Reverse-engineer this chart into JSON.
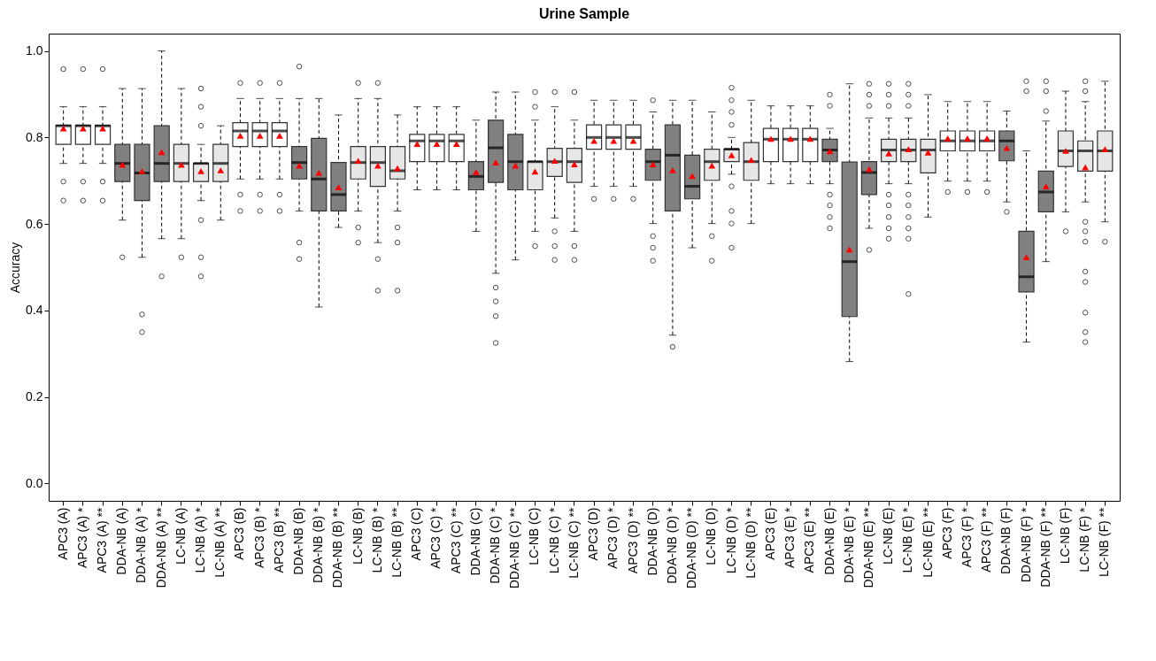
{
  "chart_data": {
    "type": "box",
    "title": "Urine Sample",
    "ylabel": "Accuracy",
    "categories": [
      "APC3 (A)",
      "APC3 (A) *",
      "APC3 (A) **",
      "DDA-NB (A)",
      "DDA-NB (A) *",
      "DDA-NB (A) **",
      "LC-NB (A)",
      "LC-NB (A) *",
      "LC-NB (A) **",
      "APC3 (B)",
      "APC3 (B) *",
      "APC3 (B) **",
      "DDA-NB (B)",
      "DDA-NB (B) *",
      "DDA-NB (B) **",
      "LC-NB (B)",
      "LC-NB (B) *",
      "LC-NB (B) **",
      "APC3 (C)",
      "APC3 (C) *",
      "APC3 (C) **",
      "DDA-NB (C)",
      "DDA-NB (C) *",
      "DDA-NB (C) **",
      "LC-NB (C)",
      "LC-NB (C) *",
      "LC-NB (C) **",
      "APC3 (D)",
      "APC3 (D) *",
      "APC3 (D) **",
      "DDA-NB (D)",
      "DDA-NB (D) *",
      "DDA-NB (D) **",
      "LC-NB (D)",
      "LC-NB (D) *",
      "LC-NB (D) **",
      "APC3 (E)",
      "APC3 (E) *",
      "APC3 (E) **",
      "DDA-NB (E)",
      "DDA-NB (E) *",
      "DDA-NB (E) **",
      "LC-NB (E)",
      "LC-NB (E) *",
      "LC-NB (E) **",
      "APC3 (F)",
      "APC3 (F) *",
      "APC3 (F) **",
      "DDA-NB (F)",
      "DDA-NB (F) *",
      "DDA-NB (F) **",
      "LC-NB (F)",
      "LC-NB (F) *",
      "LC-NB (F) **"
    ],
    "colors": [
      "#ffffff",
      "#ffffff",
      "#ffffff",
      "#808080",
      "#808080",
      "#808080",
      "#e6e6e6",
      "#e6e6e6",
      "#e6e6e6",
      "#ffffff",
      "#ffffff",
      "#ffffff",
      "#808080",
      "#808080",
      "#808080",
      "#e6e6e6",
      "#e6e6e6",
      "#e6e6e6",
      "#ffffff",
      "#ffffff",
      "#ffffff",
      "#808080",
      "#808080",
      "#808080",
      "#e6e6e6",
      "#e6e6e6",
      "#e6e6e6",
      "#ffffff",
      "#ffffff",
      "#ffffff",
      "#808080",
      "#808080",
      "#808080",
      "#e6e6e6",
      "#e6e6e6",
      "#e6e6e6",
      "#ffffff",
      "#ffffff",
      "#ffffff",
      "#808080",
      "#808080",
      "#808080",
      "#e6e6e6",
      "#e6e6e6",
      "#e6e6e6",
      "#ffffff",
      "#ffffff",
      "#ffffff",
      "#808080",
      "#808080",
      "#808080",
      "#e6e6e6",
      "#e6e6e6",
      "#e6e6e6"
    ],
    "boxes": [
      {
        "low": 0.74,
        "q1": 0.784,
        "median": 0.827,
        "q3": 0.828,
        "high": 0.871,
        "mean": 0.821,
        "outliers": [
          0.958,
          0.698,
          0.654
        ]
      },
      {
        "low": 0.74,
        "q1": 0.784,
        "median": 0.827,
        "q3": 0.828,
        "high": 0.871,
        "mean": 0.821,
        "outliers": [
          0.958,
          0.698,
          0.654
        ]
      },
      {
        "low": 0.74,
        "q1": 0.784,
        "median": 0.827,
        "q3": 0.828,
        "high": 0.871,
        "mean": 0.821,
        "outliers": [
          0.958,
          0.698,
          0.654
        ]
      },
      {
        "low": 0.609,
        "q1": 0.698,
        "median": 0.74,
        "q3": 0.784,
        "high": 0.913,
        "mean": 0.737,
        "outliers": [
          0.523
        ]
      },
      {
        "low": 0.523,
        "q1": 0.654,
        "median": 0.718,
        "q3": 0.784,
        "high": 0.913,
        "mean": 0.722,
        "outliers": [
          0.391,
          0.35
        ]
      },
      {
        "low": 0.566,
        "q1": 0.698,
        "median": 0.74,
        "q3": 0.827,
        "high": 1.0,
        "mean": 0.766,
        "outliers": [
          0.479
        ]
      },
      {
        "low": 0.566,
        "q1": 0.698,
        "median": 0.74,
        "q3": 0.784,
        "high": 0.913,
        "mean": 0.737,
        "outliers": [
          0.523
        ]
      },
      {
        "low": 0.654,
        "q1": 0.698,
        "median": 0.74,
        "q3": 0.74,
        "high": 0.784,
        "mean": 0.722,
        "outliers": [
          0.913,
          0.871,
          0.827,
          0.609,
          0.523,
          0.479
        ]
      },
      {
        "low": 0.609,
        "q1": 0.698,
        "median": 0.74,
        "q3": 0.784,
        "high": 0.827,
        "mean": 0.724
      },
      {
        "low": 0.704,
        "q1": 0.779,
        "median": 0.815,
        "q3": 0.834,
        "high": 0.89,
        "mean": 0.804,
        "outliers": [
          0.926,
          0.668,
          0.63
        ]
      },
      {
        "low": 0.704,
        "q1": 0.779,
        "median": 0.815,
        "q3": 0.834,
        "high": 0.89,
        "mean": 0.804,
        "outliers": [
          0.926,
          0.668,
          0.63
        ]
      },
      {
        "low": 0.704,
        "q1": 0.779,
        "median": 0.815,
        "q3": 0.834,
        "high": 0.89,
        "mean": 0.804,
        "outliers": [
          0.926,
          0.668,
          0.63
        ]
      },
      {
        "low": 0.63,
        "q1": 0.704,
        "median": 0.742,
        "q3": 0.779,
        "high": 0.89,
        "mean": 0.735,
        "outliers": [
          0.964,
          0.557,
          0.519
        ]
      },
      {
        "low": 0.408,
        "q1": 0.63,
        "median": 0.704,
        "q3": 0.798,
        "high": 0.89,
        "mean": 0.718
      },
      {
        "low": 0.592,
        "q1": 0.63,
        "median": 0.668,
        "q3": 0.742,
        "high": 0.852,
        "mean": 0.685
      },
      {
        "low": 0.63,
        "q1": 0.704,
        "median": 0.742,
        "q3": 0.779,
        "high": 0.89,
        "mean": 0.746,
        "outliers": [
          0.926,
          0.592,
          0.557
        ]
      },
      {
        "low": 0.557,
        "q1": 0.687,
        "median": 0.742,
        "q3": 0.779,
        "high": 0.89,
        "mean": 0.735,
        "outliers": [
          0.926,
          0.519,
          0.446
        ]
      },
      {
        "low": 0.63,
        "q1": 0.704,
        "median": 0.723,
        "q3": 0.779,
        "high": 0.852,
        "mean": 0.729,
        "outliers": [
          0.592,
          0.557,
          0.446
        ]
      },
      {
        "low": 0.679,
        "q1": 0.744,
        "median": 0.792,
        "q3": 0.807,
        "high": 0.871,
        "mean": 0.785
      },
      {
        "low": 0.679,
        "q1": 0.744,
        "median": 0.792,
        "q3": 0.807,
        "high": 0.871,
        "mean": 0.785
      },
      {
        "low": 0.679,
        "q1": 0.744,
        "median": 0.792,
        "q3": 0.807,
        "high": 0.871,
        "mean": 0.785
      },
      {
        "low": 0.583,
        "q1": 0.679,
        "median": 0.71,
        "q3": 0.744,
        "high": 0.84,
        "mean": 0.72
      },
      {
        "low": 0.486,
        "q1": 0.696,
        "median": 0.776,
        "q3": 0.84,
        "high": 0.905,
        "mean": 0.742,
        "outliers": [
          0.453,
          0.421,
          0.387,
          0.325
        ]
      },
      {
        "low": 0.517,
        "q1": 0.679,
        "median": 0.744,
        "q3": 0.807,
        "high": 0.905,
        "mean": 0.735
      },
      {
        "low": 0.583,
        "q1": 0.679,
        "median": 0.744,
        "q3": 0.744,
        "high": 0.84,
        "mean": 0.721,
        "outliers": [
          0.905,
          0.871,
          0.549
        ]
      },
      {
        "low": 0.614,
        "q1": 0.71,
        "median": 0.744,
        "q3": 0.775,
        "high": 0.871,
        "mean": 0.746,
        "outliers": [
          0.905,
          0.583,
          0.549,
          0.517
        ]
      },
      {
        "low": 0.583,
        "q1": 0.696,
        "median": 0.744,
        "q3": 0.775,
        "high": 0.84,
        "mean": 0.738,
        "outliers": [
          0.905,
          0.549,
          0.517
        ]
      },
      {
        "low": 0.687,
        "q1": 0.773,
        "median": 0.8,
        "q3": 0.829,
        "high": 0.886,
        "mean": 0.792,
        "outliers": [
          0.658
        ]
      },
      {
        "low": 0.687,
        "q1": 0.773,
        "median": 0.8,
        "q3": 0.829,
        "high": 0.886,
        "mean": 0.792,
        "outliers": [
          0.658
        ]
      },
      {
        "low": 0.687,
        "q1": 0.773,
        "median": 0.8,
        "q3": 0.829,
        "high": 0.886,
        "mean": 0.792,
        "outliers": [
          0.658
        ]
      },
      {
        "low": 0.601,
        "q1": 0.701,
        "median": 0.744,
        "q3": 0.773,
        "high": 0.859,
        "mean": 0.738,
        "outliers": [
          0.886,
          0.572,
          0.545,
          0.515
        ]
      },
      {
        "low": 0.343,
        "q1": 0.63,
        "median": 0.759,
        "q3": 0.829,
        "high": 0.886,
        "mean": 0.724,
        "outliers": [
          0.316
        ]
      },
      {
        "low": 0.545,
        "q1": 0.658,
        "median": 0.687,
        "q3": 0.759,
        "high": 0.886,
        "mean": 0.711
      },
      {
        "low": 0.601,
        "q1": 0.701,
        "median": 0.744,
        "q3": 0.773,
        "high": 0.859,
        "mean": 0.735,
        "outliers": [
          0.572,
          0.515
        ]
      },
      {
        "low": 0.715,
        "q1": 0.744,
        "median": 0.773,
        "q3": 0.773,
        "high": 0.8,
        "mean": 0.759,
        "outliers": [
          0.915,
          0.886,
          0.859,
          0.829,
          0.687,
          0.63,
          0.601,
          0.545
        ]
      },
      {
        "low": 0.601,
        "q1": 0.701,
        "median": 0.744,
        "q3": 0.788,
        "high": 0.886,
        "mean": 0.748
      },
      {
        "low": 0.693,
        "q1": 0.744,
        "median": 0.796,
        "q3": 0.821,
        "high": 0.873,
        "mean": 0.797
      },
      {
        "low": 0.693,
        "q1": 0.744,
        "median": 0.796,
        "q3": 0.821,
        "high": 0.873,
        "mean": 0.797
      },
      {
        "low": 0.693,
        "q1": 0.744,
        "median": 0.796,
        "q3": 0.821,
        "high": 0.873,
        "mean": 0.797
      },
      {
        "low": 0.693,
        "q1": 0.744,
        "median": 0.771,
        "q3": 0.796,
        "high": 0.821,
        "mean": 0.768,
        "outliers": [
          0.899,
          0.873,
          0.668,
          0.643,
          0.616,
          0.59
        ]
      },
      {
        "low": 0.282,
        "q1": 0.386,
        "median": 0.513,
        "q3": 0.743,
        "high": 0.924,
        "mean": 0.541
      },
      {
        "low": 0.59,
        "q1": 0.668,
        "median": 0.719,
        "q3": 0.744,
        "high": 0.845,
        "mean": 0.727,
        "outliers": [
          0.924,
          0.899,
          0.873,
          0.54
        ]
      },
      {
        "low": 0.693,
        "q1": 0.744,
        "median": 0.771,
        "q3": 0.796,
        "high": 0.845,
        "mean": 0.763,
        "outliers": [
          0.924,
          0.899,
          0.873,
          0.668,
          0.643,
          0.616,
          0.59,
          0.566
        ]
      },
      {
        "low": 0.693,
        "q1": 0.744,
        "median": 0.771,
        "q3": 0.796,
        "high": 0.845,
        "mean": 0.773,
        "outliers": [
          0.924,
          0.899,
          0.873,
          0.668,
          0.643,
          0.616,
          0.59,
          0.566,
          0.438
        ]
      },
      {
        "low": 0.616,
        "q1": 0.718,
        "median": 0.771,
        "q3": 0.796,
        "high": 0.899,
        "mean": 0.765
      },
      {
        "low": 0.699,
        "q1": 0.769,
        "median": 0.792,
        "q3": 0.815,
        "high": 0.883,
        "mean": 0.798,
        "outliers": [
          0.674
        ]
      },
      {
        "low": 0.699,
        "q1": 0.769,
        "median": 0.792,
        "q3": 0.815,
        "high": 0.883,
        "mean": 0.798,
        "outliers": [
          0.674
        ]
      },
      {
        "low": 0.699,
        "q1": 0.769,
        "median": 0.792,
        "q3": 0.815,
        "high": 0.883,
        "mean": 0.798,
        "outliers": [
          0.674
        ]
      },
      {
        "low": 0.651,
        "q1": 0.746,
        "median": 0.792,
        "q3": 0.815,
        "high": 0.861,
        "mean": 0.776,
        "outliers": [
          0.628
        ]
      },
      {
        "low": 0.327,
        "q1": 0.443,
        "median": 0.478,
        "q3": 0.583,
        "high": 0.769,
        "mean": 0.523,
        "outliers": [
          0.93,
          0.907
        ]
      },
      {
        "low": 0.513,
        "q1": 0.628,
        "median": 0.674,
        "q3": 0.722,
        "high": 0.838,
        "mean": 0.687,
        "outliers": [
          0.93,
          0.907,
          0.861
        ]
      },
      {
        "low": 0.628,
        "q1": 0.733,
        "median": 0.769,
        "q3": 0.815,
        "high": 0.907,
        "mean": 0.769,
        "outliers": [
          0.583
        ]
      },
      {
        "low": 0.651,
        "q1": 0.722,
        "median": 0.769,
        "q3": 0.792,
        "high": 0.883,
        "mean": 0.731,
        "outliers": [
          0.93,
          0.907,
          0.605,
          0.583,
          0.559,
          0.49,
          0.466,
          0.395,
          0.35,
          0.327
        ]
      },
      {
        "low": 0.605,
        "q1": 0.722,
        "median": 0.769,
        "q3": 0.815,
        "high": 0.93,
        "mean": 0.773,
        "outliers": [
          0.559
        ]
      }
    ],
    "ylim": [
      -0.04,
      1.04
    ],
    "yticks": [
      {
        "value": 0,
        "label": "0.0"
      },
      {
        "value": 0.2,
        "label": "0.2"
      },
      {
        "value": 0.4,
        "label": "0.4"
      },
      {
        "value": 0.6,
        "label": "0.6"
      },
      {
        "value": 0.8,
        "label": "0.8"
      },
      {
        "value": 1,
        "label": "1.0"
      }
    ]
  }
}
